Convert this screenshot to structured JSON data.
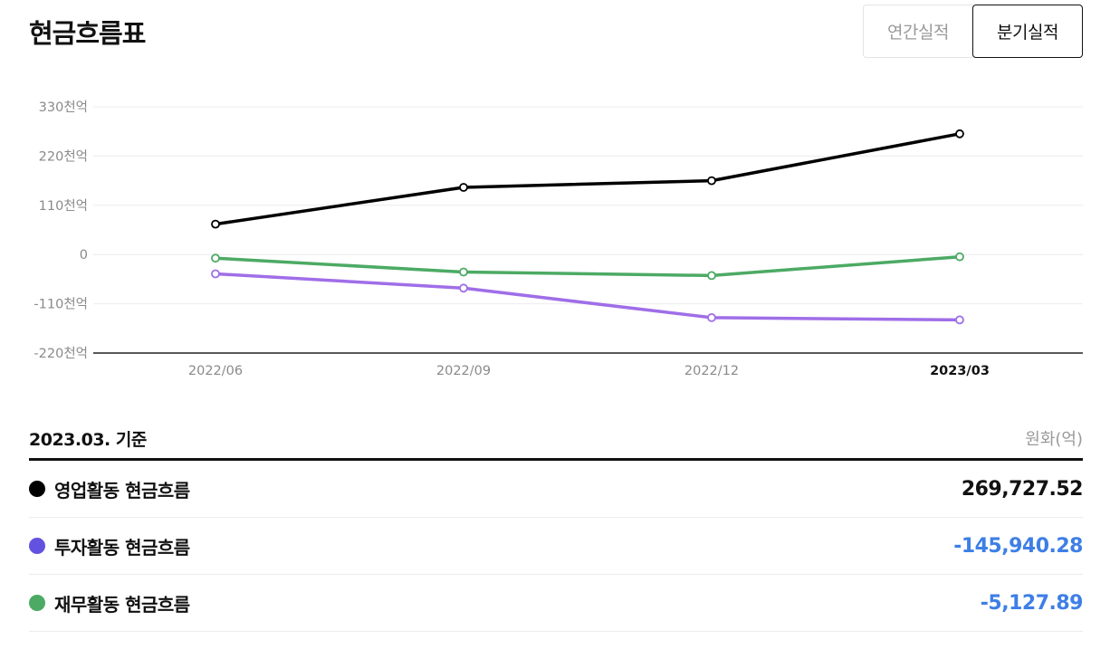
{
  "header": {
    "title": "현금흐름표",
    "tabs": [
      {
        "label": "연간실적",
        "active": false
      },
      {
        "label": "분기실적",
        "active": true
      }
    ]
  },
  "chart_data": {
    "type": "line",
    "categories": [
      "2022/06",
      "2022/09",
      "2022/12",
      "2023/03"
    ],
    "highlighted_category": "2023/03",
    "y_ticks": [
      {
        "value": 330000,
        "label": "330천억"
      },
      {
        "value": 220000,
        "label": "220천억"
      },
      {
        "value": 110000,
        "label": "110천억"
      },
      {
        "value": 0,
        "label": "0"
      },
      {
        "value": -110000,
        "label": "-110천억"
      },
      {
        "value": -220000,
        "label": "-220천억"
      }
    ],
    "ylim": [
      -220000,
      330000
    ],
    "grid": true,
    "series": [
      {
        "name": "영업활동 현금흐름",
        "color": "#000000",
        "values": [
          68000,
          150000,
          165000,
          269727.52
        ]
      },
      {
        "name": "투자활동 현금흐름",
        "color": "#9f6ee8",
        "values": [
          -43000,
          -75000,
          -141000,
          -145940.28
        ]
      },
      {
        "name": "재무활동 현금흐름",
        "color": "#4caa64",
        "values": [
          -8000,
          -39000,
          -47000,
          -5127.89
        ]
      }
    ]
  },
  "summary": {
    "basis": "2023.03. 기준",
    "unit": "원화(억)",
    "rows": [
      {
        "label": "영업활동 현금흐름",
        "value": "269,727.52",
        "dot_color": "#000000",
        "value_color": "#111111"
      },
      {
        "label": "투자활동 현금흐름",
        "value": "-145,940.28",
        "dot_color": "#6352e0",
        "value_color": "#3d7fe6"
      },
      {
        "label": "재무활동 현금흐름",
        "value": "-5,127.89",
        "dot_color": "#4caa64",
        "value_color": "#3d7fe6"
      }
    ]
  }
}
